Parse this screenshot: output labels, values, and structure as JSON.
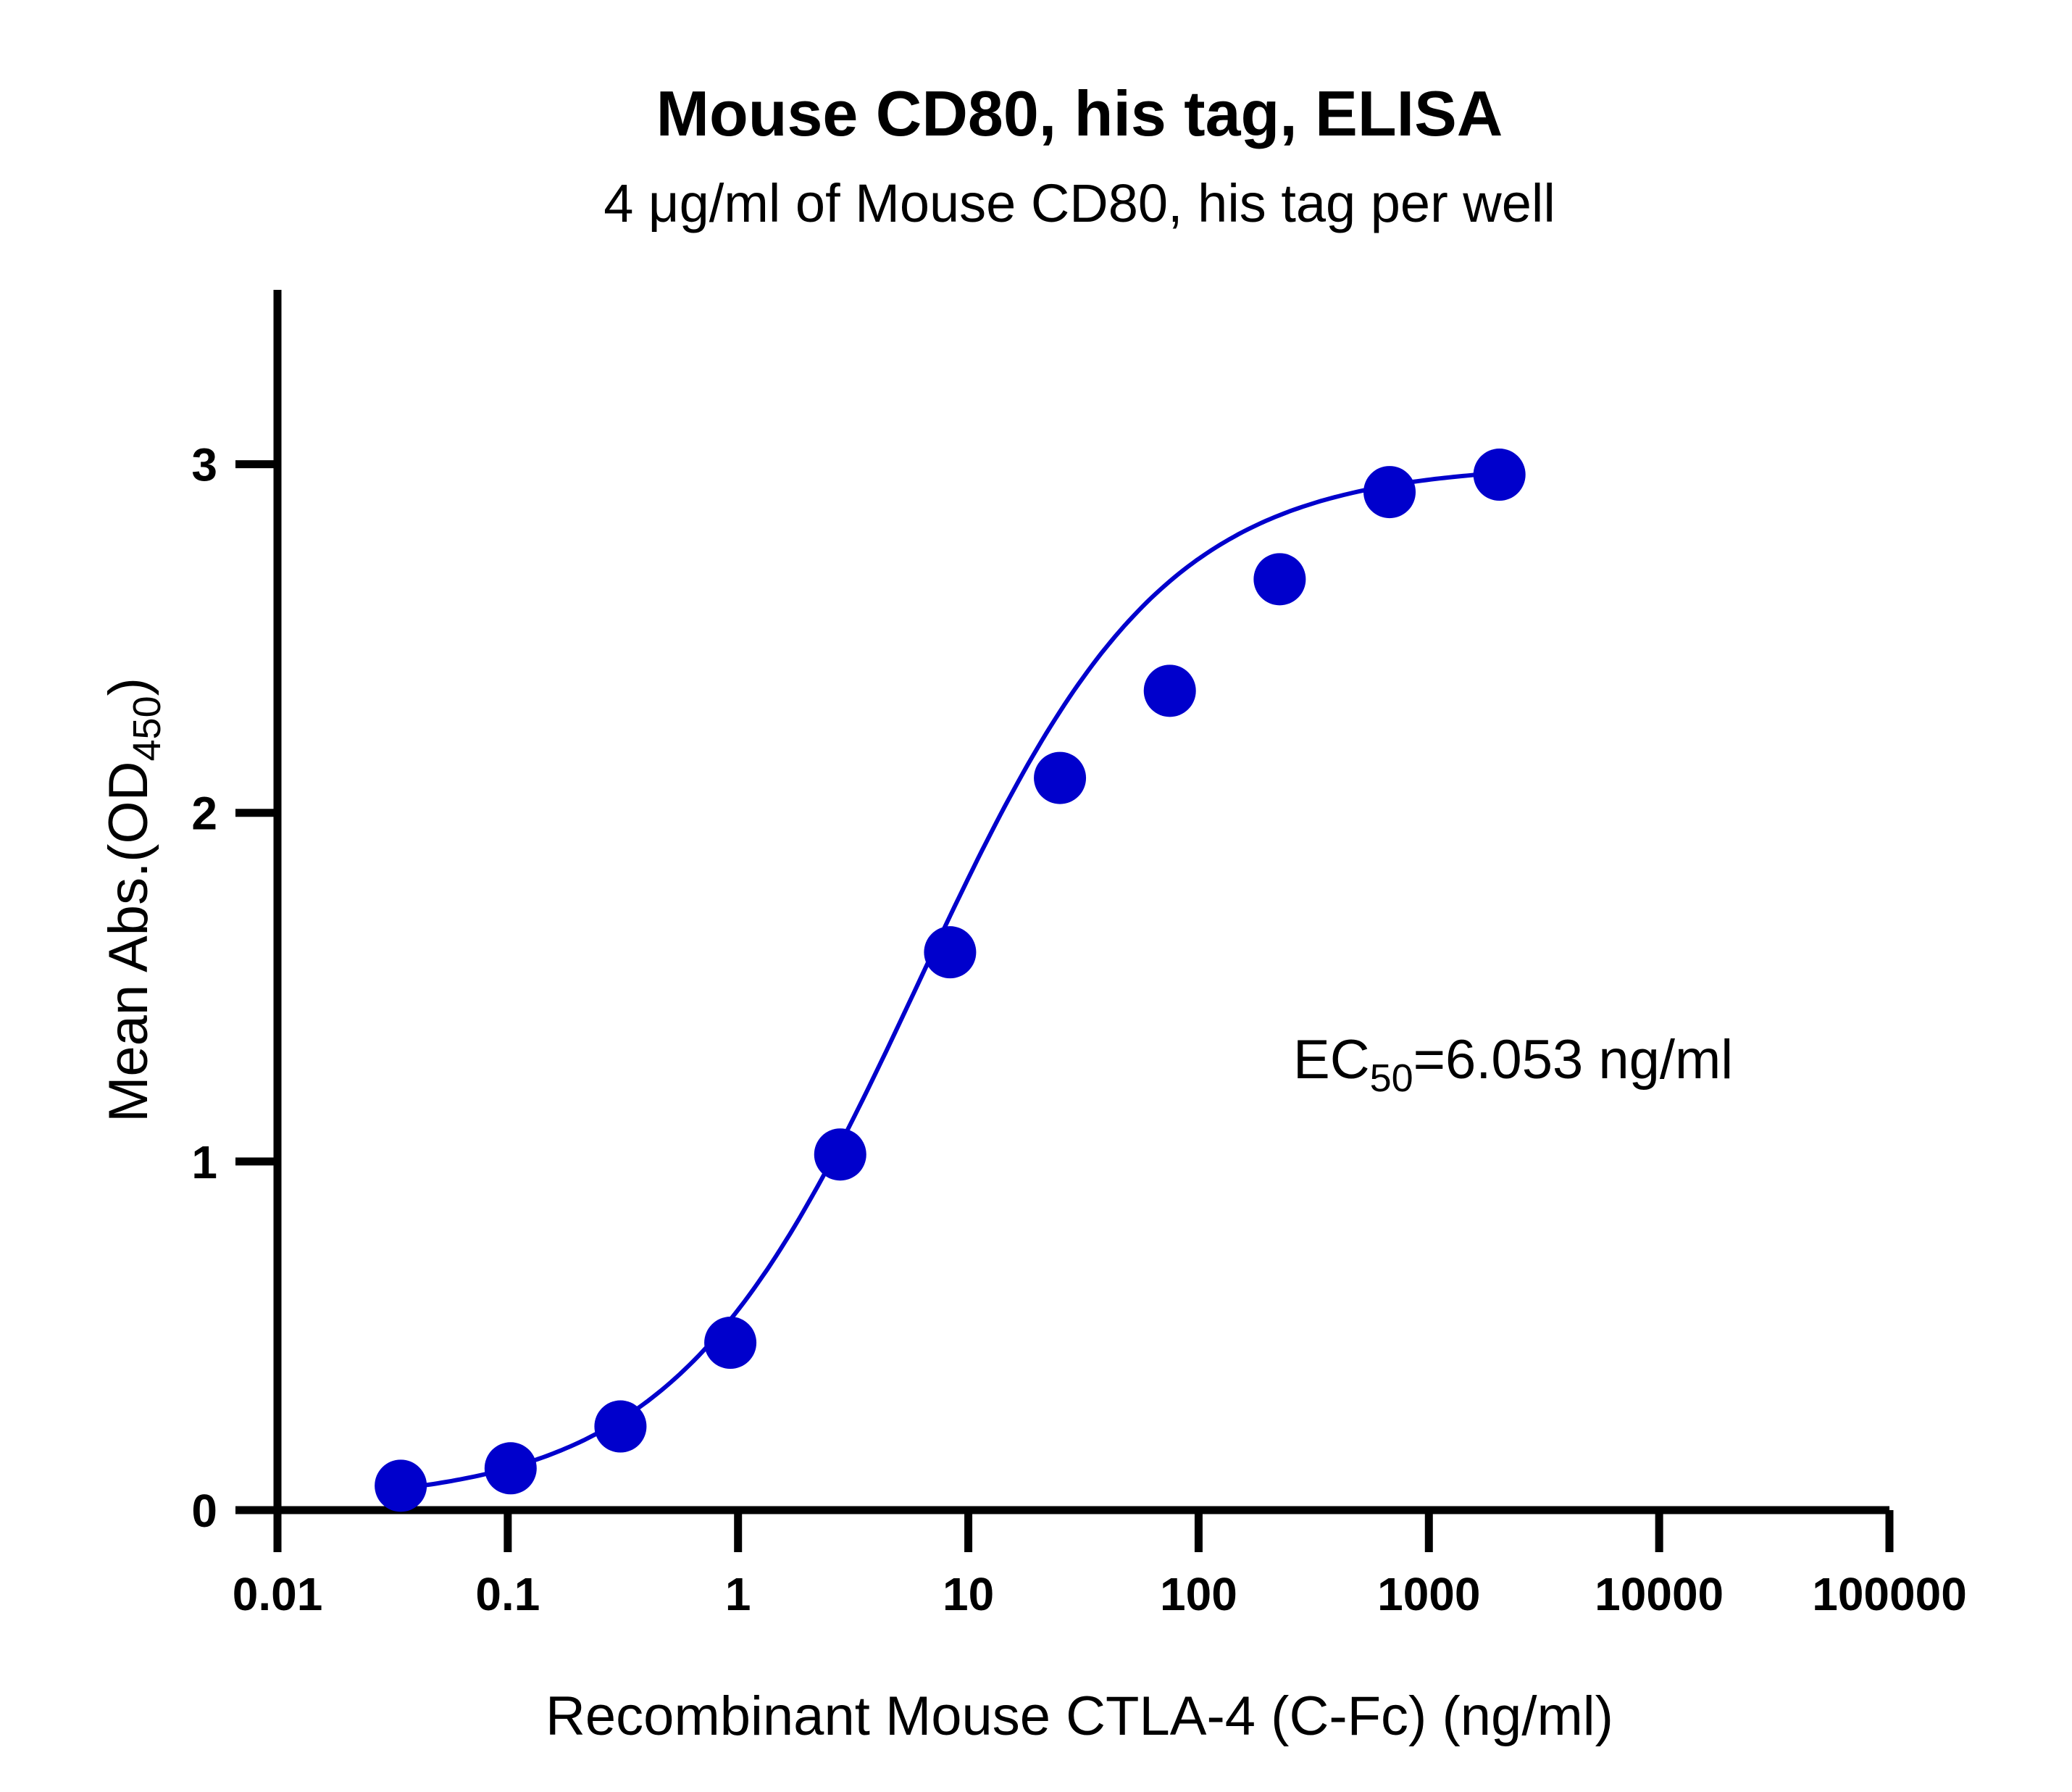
{
  "chart_data": {
    "type": "scatter",
    "title": "Mouse CD80, his tag, ELISA",
    "subtitle": "4 μg/ml of Mouse CD80, his tag per well",
    "xlabel": "Recombinant Mouse CTLA-4 (C-Fc) (ng/ml)",
    "ylabel": {
      "main": "Mean Abs.(OD",
      "sub": "450",
      "end": ")"
    },
    "xscale": "log",
    "xlim": [
      0.01,
      100000
    ],
    "ylim": [
      0,
      3.5
    ],
    "x_ticks": [
      0.01,
      0.1,
      1,
      10,
      100,
      1000,
      10000,
      100000
    ],
    "x_tick_labels": [
      "0.01",
      "0.1",
      "1",
      "10",
      "100",
      "1000",
      "10000",
      "100000"
    ],
    "y_ticks": [
      0,
      1,
      2,
      3
    ],
    "y_tick_labels": [
      "0",
      "1",
      "2",
      "3"
    ],
    "grid": false,
    "series": [
      {
        "color": "#0000CC",
        "x": [
          0.0343,
          0.1029,
          0.3086,
          0.9259,
          2.778,
          8.333,
          25,
          75,
          225,
          675,
          2025
        ],
        "y": [
          0.07,
          0.12,
          0.24,
          0.48,
          1.02,
          1.6,
          2.1,
          2.35,
          2.67,
          2.92,
          2.97
        ]
      }
    ],
    "fit": {
      "type": "4PL",
      "bottom": 0.02,
      "top": 3.0,
      "ec50": 6.053,
      "hill": 0.82,
      "color": "#0000CC"
    },
    "annotation": {
      "prefix": "EC",
      "sub": "50",
      "rest": "=6.053 ng/ml"
    }
  }
}
